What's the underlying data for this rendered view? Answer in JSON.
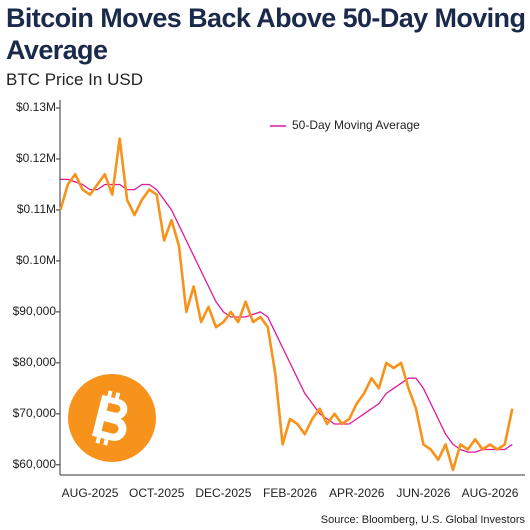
{
  "chart_data": {
    "type": "line",
    "title": "Bitcoin Moves Back Above 50-Day Moving Average",
    "subtitle": "BTC Price In USD",
    "source": "Source: Bloomberg, U.S. Global Investors",
    "categories": [
      null,
      null,
      null,
      null,
      "AUG-2025",
      null,
      null,
      null,
      null,
      null,
      null,
      null,
      null,
      "OCT-2025",
      null,
      null,
      null,
      null,
      null,
      null,
      null,
      null,
      "DEC-2025",
      null,
      null,
      null,
      null,
      null,
      null,
      null,
      null,
      "FEB-2026",
      null,
      null,
      null,
      null,
      null,
      null,
      null,
      null,
      "APR-2026",
      null,
      null,
      null,
      null,
      null,
      null,
      null,
      null,
      "JUN-2026",
      null,
      null,
      null,
      null,
      null,
      null,
      null,
      null,
      "AUG-2026",
      null,
      null,
      null
    ],
    "series": [
      {
        "color": "#f7931a",
        "values": [
          110000,
          115000,
          117000,
          114000,
          113000,
          115000,
          117000,
          113000,
          124000,
          112000,
          109000,
          112000,
          114000,
          113000,
          104000,
          108000,
          103000,
          90000,
          95000,
          88000,
          91000,
          87000,
          88000,
          90000,
          88000,
          92000,
          88000,
          89000,
          87000,
          78000,
          64000,
          69000,
          68000,
          66000,
          69000,
          71000,
          68000,
          70000,
          68000,
          69000,
          72000,
          74000,
          77000,
          75000,
          80000,
          79000,
          80000,
          75000,
          71000,
          64000,
          63000,
          61000,
          64000,
          59000,
          64000,
          63000,
          65000,
          63000,
          64000,
          63000,
          64000,
          71000
        ]
      },
      {
        "name": "50-Day Moving Average",
        "color": "#e0199a",
        "values": [
          116000,
          116000,
          115500,
          115000,
          114000,
          114000,
          115000,
          115000,
          115000,
          114000,
          114000,
          115000,
          115000,
          114000,
          112000,
          110000,
          107000,
          104000,
          101000,
          98000,
          95000,
          92000,
          90000,
          89000,
          89000,
          89000,
          89500,
          90000,
          89000,
          86000,
          83000,
          80000,
          77000,
          74000,
          72000,
          70000,
          69000,
          68000,
          68000,
          68000,
          69000,
          70000,
          71000,
          72000,
          74000,
          75000,
          76000,
          77000,
          77000,
          75000,
          72000,
          69000,
          66000,
          64000,
          63000,
          62500,
          62500,
          63000,
          63000,
          63000,
          63000,
          64000
        ]
      }
    ],
    "ylim": [
      58000,
      130000
    ],
    "yticks": [
      {
        "value": 60000,
        "label": "$60,000"
      },
      {
        "value": 70000,
        "label": "$70,000"
      },
      {
        "value": 80000,
        "label": "$80,000"
      },
      {
        "value": 90000,
        "label": "$90,000"
      },
      {
        "value": 100000,
        "label": "$0.10M"
      },
      {
        "value": 110000,
        "label": "$0.11M"
      },
      {
        "value": 120000,
        "label": "$0.12M"
      },
      {
        "value": 130000,
        "label": "$0.13M"
      }
    ],
    "legend": "top-right"
  }
}
